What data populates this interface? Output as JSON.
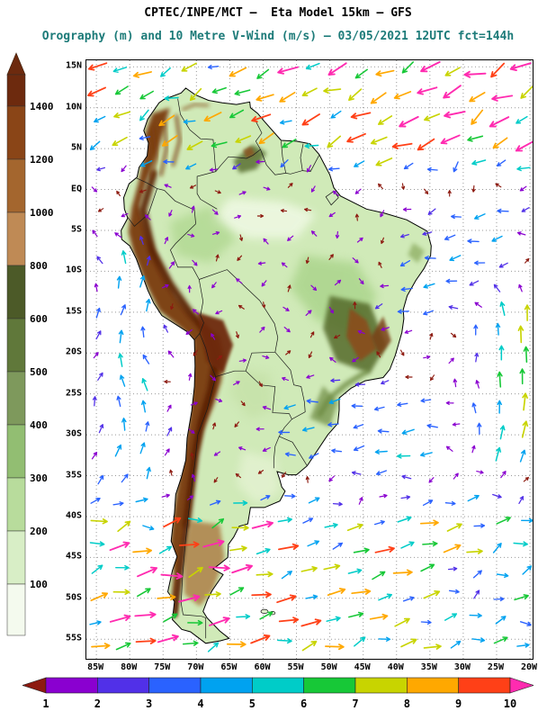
{
  "header": {
    "title": "CPTEC/INPE/MCT —  Eta Model 15km — GFS",
    "subtitle": "Orography (m) and 10 Metre V-Wind (m/s) — 03/05/2021 12UTC fct=144h"
  },
  "axes": {
    "lat": [
      {
        "label": "15N",
        "deg": 15
      },
      {
        "label": "10N",
        "deg": 10
      },
      {
        "label": "5N",
        "deg": 5
      },
      {
        "label": "EQ",
        "deg": 0
      },
      {
        "label": "5S",
        "deg": -5
      },
      {
        "label": "10S",
        "deg": -10
      },
      {
        "label": "15S",
        "deg": -15
      },
      {
        "label": "20S",
        "deg": -20
      },
      {
        "label": "25S",
        "deg": -25
      },
      {
        "label": "30S",
        "deg": -30
      },
      {
        "label": "35S",
        "deg": -35
      },
      {
        "label": "40S",
        "deg": -40
      },
      {
        "label": "45S",
        "deg": -45
      },
      {
        "label": "50S",
        "deg": -50
      },
      {
        "label": "55S",
        "deg": -55
      }
    ],
    "lon": [
      {
        "label": "85W",
        "deg": 85
      },
      {
        "label": "80W",
        "deg": 80
      },
      {
        "label": "75W",
        "deg": 75
      },
      {
        "label": "70W",
        "deg": 70
      },
      {
        "label": "65W",
        "deg": 65
      },
      {
        "label": "60W",
        "deg": 60
      },
      {
        "label": "55W",
        "deg": 55
      },
      {
        "label": "50W",
        "deg": 50
      },
      {
        "label": "45W",
        "deg": 45
      },
      {
        "label": "40W",
        "deg": 40
      },
      {
        "label": "35W",
        "deg": 35
      },
      {
        "label": "30W",
        "deg": 30
      },
      {
        "label": "25W",
        "deg": 25
      },
      {
        "label": "20W",
        "deg": 20
      }
    ]
  },
  "orography_scale": {
    "unit": "m",
    "tick_labels": [
      "1400",
      "1200",
      "1000",
      "800",
      "600",
      "500",
      "400",
      "300",
      "200",
      "100"
    ],
    "colors": [
      "#6d2a0e",
      "#8a4517",
      "#a4662e",
      "#bf8a55",
      "#4c5a28",
      "#60783a",
      "#7e995c",
      "#92be72",
      "#b8dc9c",
      "#d8eec6",
      "#f4faee"
    ]
  },
  "wind_scale": {
    "unit": "m/s",
    "tick_labels": [
      "1",
      "2",
      "3",
      "4",
      "5",
      "6",
      "7",
      "8",
      "9",
      "10"
    ],
    "colors": [
      "#8d1a10",
      "#8a00d0",
      "#5130e8",
      "#2a62ff",
      "#00a2f0",
      "#00ccc8",
      "#17c837",
      "#c8d400",
      "#ffa800",
      "#ff4017",
      "#ff2bb0"
    ]
  },
  "ui_colors": {
    "subtitle": "#1d7b79",
    "grid": "#999999",
    "coastline": "#000000",
    "land_base": "#d0eab8"
  },
  "chart_data": {
    "type": "heatmap",
    "subtype": "geographic orography shading with 10 m wind vector overlay over South America",
    "title": "CPTEC/INPE/MCT — Eta Model 15km — GFS",
    "subtitle": "Orography (m) and 10 Metre V-Wind (m/s) — 03/05/2021 12UTC fct=144h",
    "source": "CPTEC/INPE/MCT",
    "model": "Eta Model 15km",
    "boundary_condition": "GFS",
    "valid": "03/05/2021 12UTC",
    "forecast": "fct=144h",
    "fields": [
      "Orography (m)",
      "10 Metre V-Wind (m/s)"
    ],
    "x_axis": {
      "label": "longitude",
      "ticks": [
        "85W",
        "80W",
        "75W",
        "70W",
        "65W",
        "60W",
        "55W",
        "50W",
        "45W",
        "40W",
        "35W",
        "30W",
        "25W",
        "20W"
      ]
    },
    "y_axis": {
      "label": "latitude",
      "ticks": [
        "15N",
        "10N",
        "5N",
        "EQ",
        "5S",
        "10S",
        "15S",
        "20S",
        "25S",
        "30S",
        "35S",
        "40S",
        "45S",
        "50S",
        "55S"
      ]
    },
    "orography_levels_m": [
      100,
      200,
      300,
      400,
      500,
      600,
      800,
      1000,
      1200,
      1400
    ],
    "wind_speed_levels_ms": [
      1,
      2,
      3,
      4,
      5,
      6,
      7,
      8,
      9,
      10
    ],
    "wind_regimes": [
      {
        "area": "tropical North Atlantic and Caribbean (north of EQ)",
        "direction": "W to SW",
        "speed_ms": "8-11"
      },
      {
        "area": "Amazon / central Brazil interior",
        "direction": "variable, weak",
        "speed_ms": "1-3"
      },
      {
        "area": "Atlantic off NE Brazil",
        "direction": "W",
        "speed_ms": "3-5"
      },
      {
        "area": "eastern edge near 20-25W subtropics",
        "direction": "N",
        "speed_ms": "7-9"
      },
      {
        "area": "Pacific coast of Peru and Chile",
        "direction": "northward (southerly)",
        "speed_ms": "3-5"
      },
      {
        "area": "Southern Ocean south of 40S",
        "direction": "E to NE (westerlies)",
        "speed_ms": "6-11"
      }
    ]
  }
}
